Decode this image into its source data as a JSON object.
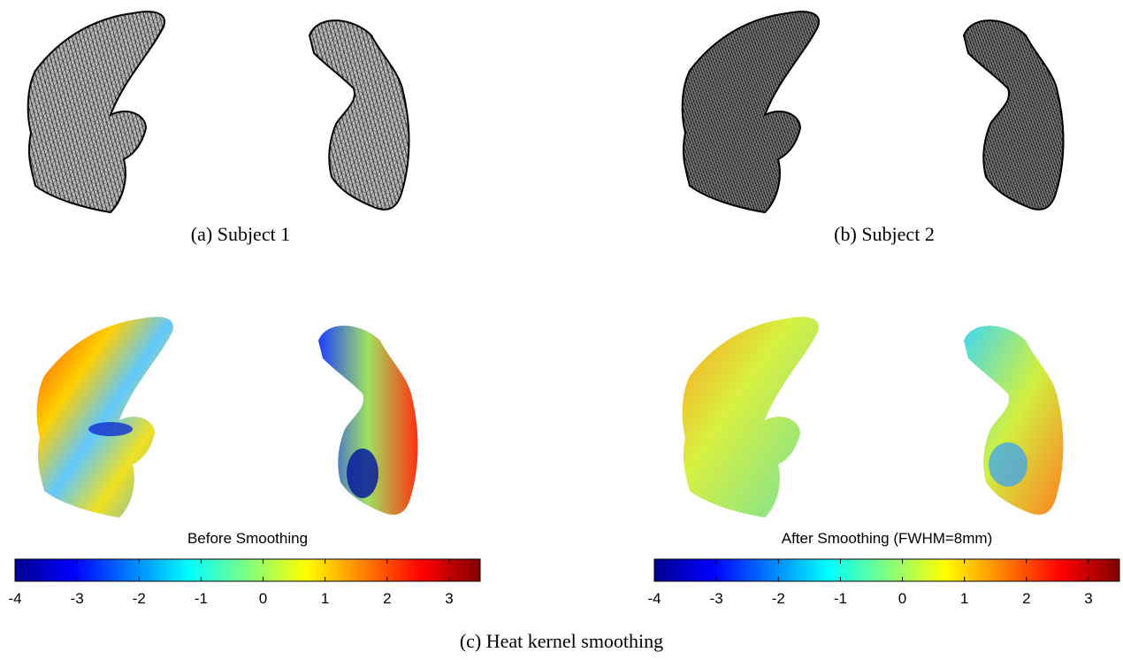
{
  "captions": {
    "a": "(a) Subject 1",
    "b": "(b) Subject 2",
    "c": "(c) Heat kernel smoothing"
  },
  "colorbars": [
    {
      "title": "Before Smoothing",
      "lim": [
        -4,
        3.5
      ],
      "ticks": [
        -4,
        -3,
        -2,
        -1,
        0,
        1,
        2,
        3
      ]
    },
    {
      "title": "After Smoothing (FWHM=8mm)",
      "lim": [
        -4,
        3.5
      ],
      "ticks": [
        -4,
        -3,
        -2,
        -1,
        0,
        1,
        2,
        3
      ]
    }
  ]
}
